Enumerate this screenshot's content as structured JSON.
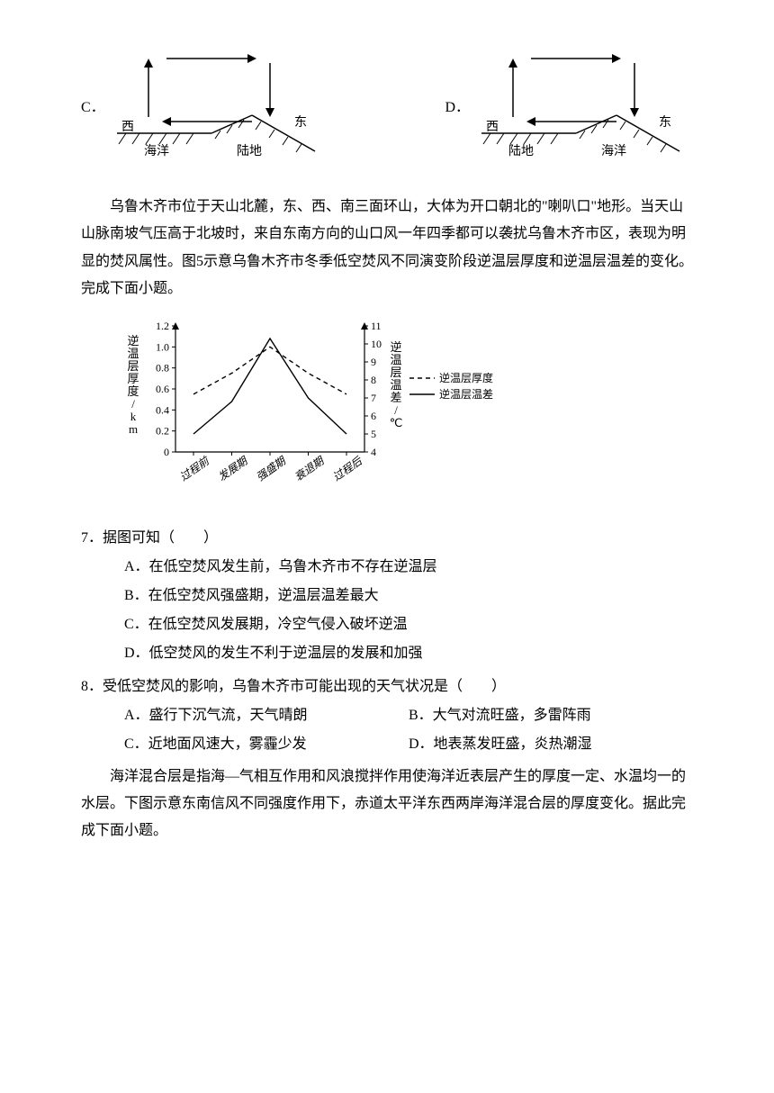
{
  "diagrams": {
    "c_label": "C．",
    "d_label": "D．",
    "c": {
      "left": "西",
      "right": "东",
      "leftArea": "海洋",
      "rightArea": "陆地"
    },
    "d": {
      "left": "西",
      "right": "东",
      "leftArea": "陆地",
      "rightArea": "海洋"
    }
  },
  "intro_paragraph": "乌鲁木齐市位于天山北麓，东、西、南三面环山，大体为开口朝北的\"喇叭口\"地形。当天山山脉南坡气压高于北坡时，来自东南方向的山口风一年四季都可以袭扰乌鲁木齐市区，表现为明显的焚风属性。图5示意乌鲁木齐市冬季低空焚风不同演变阶段逆温层厚度和逆温层温差的变化。完成下面小题。",
  "chart": {
    "ylabel_left": "逆温层厚度/km",
    "ylabel_right": "逆温层温差/℃",
    "left_ticks": [
      "0",
      "0.2",
      "0.4",
      "0.6",
      "0.8",
      "1.0",
      "1.2"
    ],
    "right_ticks": [
      "4",
      "5",
      "6",
      "7",
      "8",
      "9",
      "10",
      "11"
    ],
    "x_categories": [
      "过程前",
      "发展期",
      "强盛期",
      "衰退期",
      "过程后"
    ],
    "legend_thickness": "逆温层厚度",
    "legend_tempdiff": "逆温层温差",
    "thickness_values": [
      0.55,
      0.75,
      1.0,
      0.75,
      0.55
    ],
    "tempdiff_values": [
      5.0,
      6.8,
      10.3,
      7.0,
      5.0
    ],
    "line_color": "#000000",
    "background_color": "#ffffff",
    "grid_color": "#000000"
  },
  "q7": {
    "stem": "7．据图可知（　　）",
    "a": "A．在低空焚风发生前，乌鲁木齐市不存在逆温层",
    "b": "B．在低空焚风强盛期，逆温层温差最大",
    "c": "C．在低空焚风发展期，冷空气侵入破坏逆温",
    "d": "D．低空焚风的发生不利于逆温层的发展和加强"
  },
  "q8": {
    "stem": "8．受低空焚风的影响，乌鲁木齐市可能出现的天气状况是（　　）",
    "a": "A．盛行下沉气流，天气晴朗",
    "b": "B．大气对流旺盛，多雷阵雨",
    "c": "C．近地面风速大，雾霾少发",
    "d": "D．地表蒸发旺盛，炎热潮湿"
  },
  "paragraph2": "海洋混合层是指海—气相互作用和风浪搅拌作用使海洋近表层产生的厚度一定、水温均一的水层。下图示意东南信风不同强度作用下，赤道太平洋东西两岸海洋混合层的厚度变化。据此完成下面小题。"
}
